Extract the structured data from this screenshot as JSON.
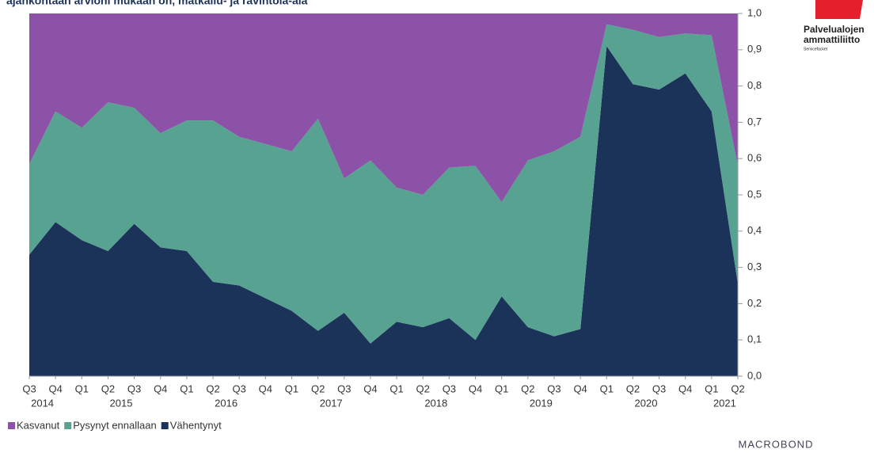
{
  "chart_data": {
    "type": "stacked_area",
    "title": "ajankohtaan arvioni mukaan on, matkailu- ja ravintola-ala",
    "categories": [
      "Q3",
      "Q4",
      "Q1",
      "Q2",
      "Q3",
      "Q4",
      "Q1",
      "Q2",
      "Q3",
      "Q4",
      "Q1",
      "Q2",
      "Q3",
      "Q4",
      "Q1",
      "Q2",
      "Q3",
      "Q4",
      "Q1",
      "Q2",
      "Q3",
      "Q4",
      "Q1",
      "Q2",
      "Q3",
      "Q4",
      "Q1",
      "Q2"
    ],
    "years": [
      "2014",
      "2015",
      "2016",
      "2017",
      "2018",
      "2019",
      "2020",
      "2021"
    ],
    "series": [
      {
        "name": "Vähentynyt",
        "color": "#1b3358",
        "values": [
          0.335,
          0.425,
          0.375,
          0.345,
          0.42,
          0.355,
          0.345,
          0.26,
          0.25,
          0.215,
          0.18,
          0.125,
          0.175,
          0.09,
          0.15,
          0.135,
          0.16,
          0.1,
          0.22,
          0.135,
          0.11,
          0.13,
          0.91,
          0.805,
          0.79,
          0.835,
          0.73,
          0.255
        ]
      },
      {
        "name": "Pysynyt ennallaan",
        "color": "#58a291",
        "values": [
          0.25,
          0.305,
          0.31,
          0.41,
          0.32,
          0.315,
          0.36,
          0.445,
          0.41,
          0.425,
          0.44,
          0.585,
          0.37,
          0.505,
          0.37,
          0.365,
          0.415,
          0.48,
          0.26,
          0.46,
          0.51,
          0.53,
          0.06,
          0.15,
          0.145,
          0.11,
          0.21,
          0.325
        ]
      },
      {
        "name": "Kasvanut",
        "color": "#8b52a8",
        "values": [
          0.415,
          0.27,
          0.315,
          0.245,
          0.26,
          0.33,
          0.295,
          0.295,
          0.34,
          0.36,
          0.38,
          0.29,
          0.455,
          0.405,
          0.48,
          0.5,
          0.425,
          0.42,
          0.52,
          0.405,
          0.38,
          0.34,
          0.03,
          0.045,
          0.065,
          0.055,
          0.06,
          0.42
        ]
      }
    ],
    "legend_order": [
      2,
      1,
      0
    ],
    "ylim": [
      0,
      1
    ],
    "yticks": [
      {
        "value": 0,
        "label": "0,0"
      },
      {
        "value": 0.1,
        "label": "0,1"
      },
      {
        "value": 0.2,
        "label": "0,2"
      },
      {
        "value": 0.3,
        "label": "0,3"
      },
      {
        "value": 0.4,
        "label": "0,4"
      },
      {
        "value": 0.5,
        "label": "0,5"
      },
      {
        "value": 0.6,
        "label": "0,6"
      },
      {
        "value": 0.7,
        "label": "0,7"
      },
      {
        "value": 0.8,
        "label": "0,8"
      },
      {
        "value": 0.9,
        "label": "0,9"
      },
      {
        "value": 1,
        "label": "1,0"
      }
    ],
    "logo": {
      "line1": "Palvelualojen",
      "line2": "ammattiliitto",
      "line3": "Servicefacket"
    },
    "source": "MACROBOND"
  }
}
